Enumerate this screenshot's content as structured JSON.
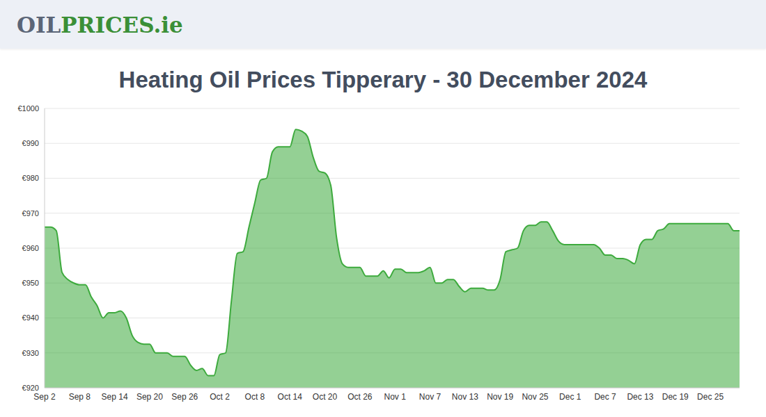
{
  "header": {
    "logo": [
      "OIL",
      "PRICES.ie"
    ]
  },
  "chart_data": {
    "type": "area",
    "title": "Heating Oil Prices Tipperary - 30 December 2024",
    "categories": [
      "Sep 2",
      null,
      null,
      null,
      null,
      null,
      "Sep 8",
      null,
      null,
      null,
      null,
      null,
      "Sep 14",
      null,
      null,
      null,
      null,
      null,
      "Sep 20",
      null,
      null,
      null,
      null,
      null,
      "Sep 26",
      null,
      null,
      null,
      null,
      null,
      "Oct 2",
      null,
      null,
      null,
      null,
      null,
      "Oct 8",
      null,
      null,
      null,
      null,
      null,
      "Oct 14",
      null,
      null,
      null,
      null,
      null,
      "Oct 20",
      null,
      null,
      null,
      null,
      null,
      "Oct 26",
      null,
      null,
      null,
      null,
      null,
      "Nov 1",
      null,
      null,
      null,
      null,
      null,
      "Nov 7",
      null,
      null,
      null,
      null,
      null,
      "Nov 13",
      null,
      null,
      null,
      null,
      null,
      "Nov 19",
      null,
      null,
      null,
      null,
      null,
      "Nov 25",
      null,
      null,
      null,
      null,
      null,
      "Dec 1",
      null,
      null,
      null,
      null,
      null,
      "Dec 7",
      null,
      null,
      null,
      null,
      null,
      "Dec 13",
      null,
      null,
      null,
      null,
      null,
      "Dec 19",
      null,
      null,
      null,
      null,
      null,
      "Dec 25",
      null,
      null,
      null,
      null,
      null
    ],
    "values": [
      966,
      966,
      965,
      953,
      951,
      950,
      949.5,
      949.5,
      946,
      943.5,
      940,
      941.5,
      941.5,
      942,
      940,
      935,
      933,
      932.5,
      932.5,
      930,
      930,
      930,
      929,
      929,
      929,
      926.5,
      925,
      925.5,
      923.5,
      923.5,
      929.5,
      930,
      945,
      958.5,
      959,
      966,
      973,
      979.5,
      980,
      987.5,
      989,
      989,
      989,
      994,
      993.5,
      992,
      986,
      982,
      981.5,
      978,
      963,
      955.5,
      954.5,
      954.5,
      954.5,
      952,
      952,
      952,
      953.5,
      951.5,
      954,
      954,
      953,
      953,
      953,
      953.5,
      954.5,
      950,
      950,
      951,
      951,
      949,
      947.5,
      948.5,
      948.5,
      948.5,
      948,
      948,
      951,
      959,
      959.5,
      960,
      965,
      966.5,
      966.5,
      967.5,
      967.5,
      965,
      962,
      961,
      961,
      961,
      961,
      961,
      961,
      960,
      958,
      958,
      957,
      957,
      956.5,
      955.5,
      961,
      962.5,
      962.5,
      965,
      965.5,
      967,
      967,
      967,
      967,
      967,
      967,
      967,
      967,
      967,
      967,
      967,
      965,
      965
    ],
    "color": "#3daa3d",
    "ylim": [
      920,
      1000
    ],
    "yticks": [
      {
        "value": 920,
        "label": "€920"
      },
      {
        "value": 930,
        "label": "€930"
      },
      {
        "value": 940,
        "label": "€940"
      },
      {
        "value": 950,
        "label": "€950"
      },
      {
        "value": 960,
        "label": "€960"
      },
      {
        "value": 970,
        "label": "€970"
      },
      {
        "value": 980,
        "label": "€980"
      },
      {
        "value": 990,
        "label": "€990"
      },
      {
        "value": 1000,
        "label": "€1000"
      }
    ],
    "grid": true
  }
}
